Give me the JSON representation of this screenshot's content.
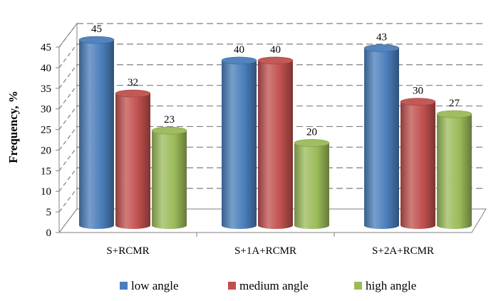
{
  "chart_data": {
    "type": "bar",
    "title": "",
    "xlabel": "",
    "ylabel": "Frequency, %",
    "ylim": [
      0,
      45
    ],
    "yticks": [
      0,
      5,
      10,
      15,
      20,
      25,
      30,
      35,
      40,
      45
    ],
    "grid": true,
    "legend_position": "bottom",
    "style": "3d-cylinder",
    "categories": [
      "S+RCMR",
      "S+1A+RCMR",
      "S+2A+RCMR"
    ],
    "series": [
      {
        "name": "low angle",
        "values": [
          45,
          40,
          43
        ],
        "color": "#4a7ebb"
      },
      {
        "name": "medium angle",
        "values": [
          32,
          40,
          30
        ],
        "color": "#c0504d"
      },
      {
        "name": "high angle",
        "values": [
          23,
          20,
          27
        ],
        "color": "#9bbb59"
      }
    ]
  }
}
